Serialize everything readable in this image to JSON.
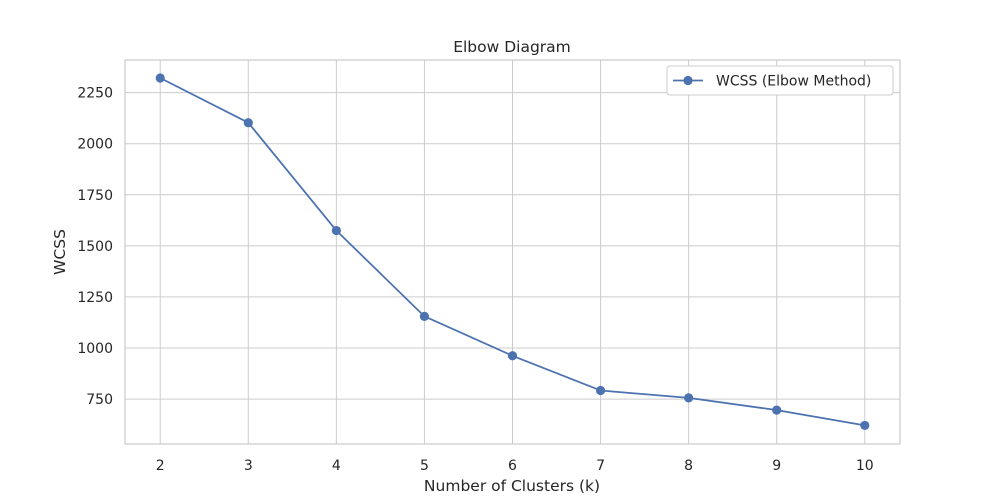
{
  "chart_data": {
    "type": "line",
    "title": "Elbow Diagram",
    "xlabel": "Number of Clusters (k)",
    "ylabel": "WCSS",
    "x": [
      2,
      3,
      4,
      5,
      6,
      7,
      8,
      9,
      10
    ],
    "series": [
      {
        "name": "WCSS (Elbow Method)",
        "values": [
          2322,
          2103,
          1575,
          1155,
          962,
          792,
          756,
          696,
          621
        ],
        "color": "#4c72b0",
        "marker": "circle"
      }
    ],
    "xticks": [
      "2",
      "3",
      "4",
      "5",
      "6",
      "7",
      "8",
      "9",
      "10"
    ],
    "yticks": [
      "750",
      "1000",
      "1250",
      "1500",
      "1750",
      "2000",
      "2250"
    ],
    "xlim": [
      1.6,
      10.4
    ],
    "ylim": [
      530,
      2410
    ],
    "grid": true,
    "legend_position": "top-right",
    "colors": {
      "background": "#ffffff",
      "grid": "#cccccc",
      "axes_edge": "#cccccc",
      "text": "#262626"
    }
  }
}
